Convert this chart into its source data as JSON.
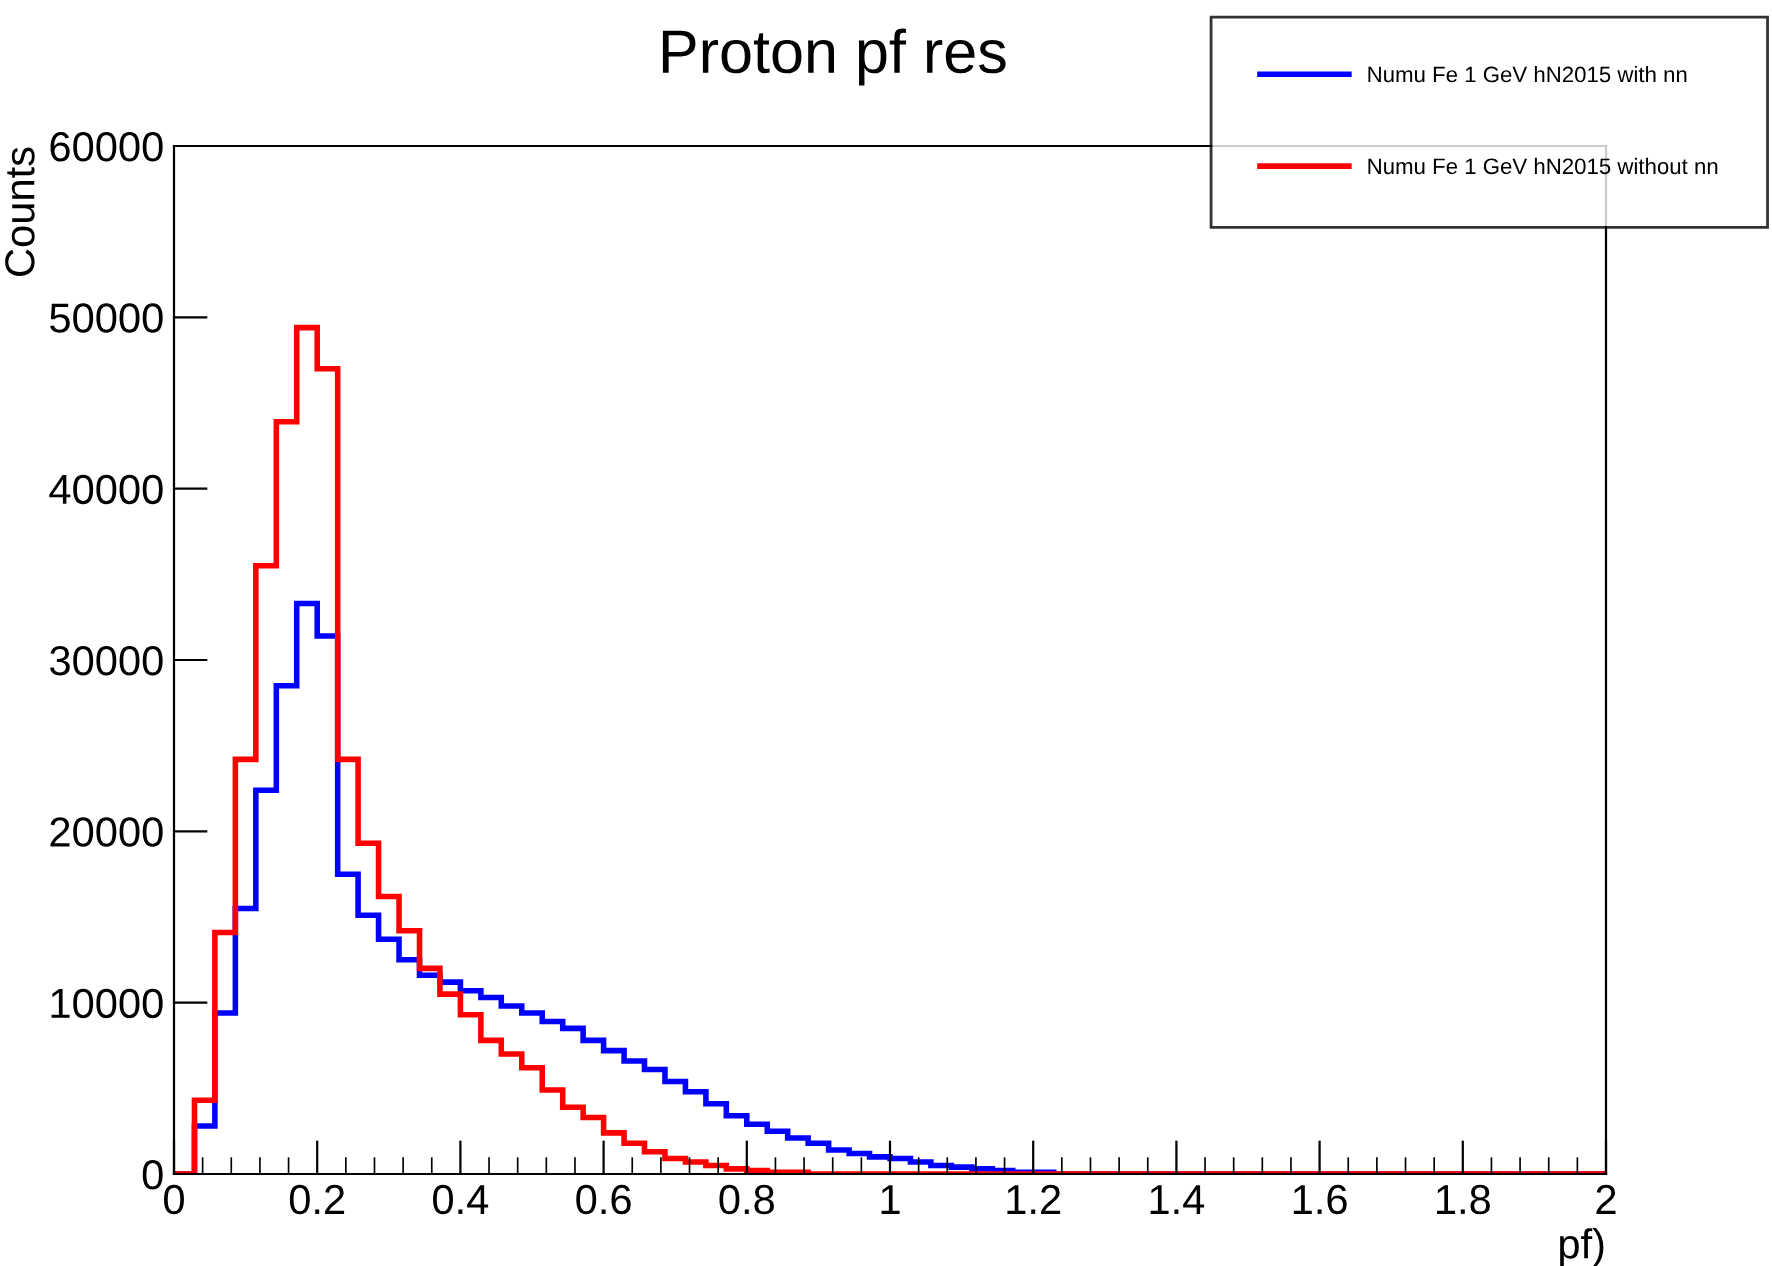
{
  "chart_data": {
    "type": "histogram",
    "title": "Proton pf res",
    "xlabel": "pf)",
    "ylabel": "Counts",
    "bins": [
      0,
      0.0286,
      0.0571,
      0.0857,
      0.1143,
      0.1429,
      0.1714,
      0.2,
      0.2286,
      0.2571,
      0.2857,
      0.3143,
      0.3429,
      0.3714,
      0.4,
      0.4286,
      0.4571,
      0.4857,
      0.5143,
      0.5429,
      0.5714,
      0.6,
      0.6286,
      0.6571,
      0.6857,
      0.7143,
      0.7429,
      0.7714,
      0.8,
      0.8286,
      0.8571,
      0.8857,
      0.9143,
      0.9429,
      0.9714,
      1,
      1.0286,
      1.0571,
      1.0857,
      1.1143,
      1.1429,
      1.1714,
      1.2,
      1.2286,
      1.2571,
      1.2857,
      1.3143,
      1.3429,
      1.3714,
      1.4,
      1.4286,
      1.4571,
      1.4857,
      1.5143,
      1.5429,
      1.5714,
      1.6,
      1.6286,
      1.6571,
      1.6857,
      1.7143,
      1.7429,
      1.7714,
      1.8,
      1.8286,
      1.8571,
      1.8857,
      1.9143,
      1.9429,
      1.9714,
      2
    ],
    "series": [
      {
        "name": "Numu Fe 1 GeV hN2015 with nn",
        "color": "#0000ff",
        "values": [
          0,
          2800,
          9400,
          15500,
          22400,
          28500,
          33300,
          31400,
          17500,
          15100,
          13700,
          12500,
          11600,
          11200,
          10700,
          10300,
          9800,
          9400,
          8900,
          8500,
          7800,
          7200,
          6600,
          6100,
          5400,
          4800,
          4100,
          3400,
          2900,
          2500,
          2100,
          1800,
          1400,
          1200,
          1000,
          900,
          700,
          500,
          400,
          300,
          200,
          100,
          100,
          0,
          0,
          0,
          0,
          0,
          0,
          0,
          0,
          0,
          0,
          0,
          0,
          0,
          0,
          0,
          0,
          0,
          0,
          0,
          0,
          0,
          0,
          0,
          0,
          0,
          0,
          0
        ]
      },
      {
        "name": "Numu Fe 1 GeV hN2015 without nn",
        "color": "#ff0000",
        "values": [
          0,
          4300,
          14100,
          24200,
          35500,
          43900,
          49400,
          47000,
          24200,
          19300,
          16200,
          14200,
          12000,
          10500,
          9300,
          7800,
          7000,
          6200,
          4900,
          3900,
          3300,
          2400,
          1800,
          1300,
          900,
          700,
          500,
          300,
          200,
          100,
          100,
          0,
          0,
          0,
          0,
          0,
          0,
          0,
          0,
          0,
          0,
          0,
          0,
          0,
          0,
          0,
          0,
          0,
          0,
          0,
          0,
          0,
          0,
          0,
          0,
          0,
          0,
          0,
          0,
          0,
          0,
          0,
          0,
          0,
          0,
          0,
          0,
          0,
          0,
          0
        ]
      }
    ],
    "xlim": [
      0,
      2
    ],
    "xticks": [
      0,
      0.2,
      0.4,
      0.6,
      0.8,
      1,
      1.2,
      1.4,
      1.6,
      1.8,
      2
    ],
    "ylim": [
      0,
      60000
    ],
    "yticks": [
      0,
      10000,
      20000,
      30000,
      40000,
      50000,
      60000
    ],
    "legend": "top right"
  }
}
